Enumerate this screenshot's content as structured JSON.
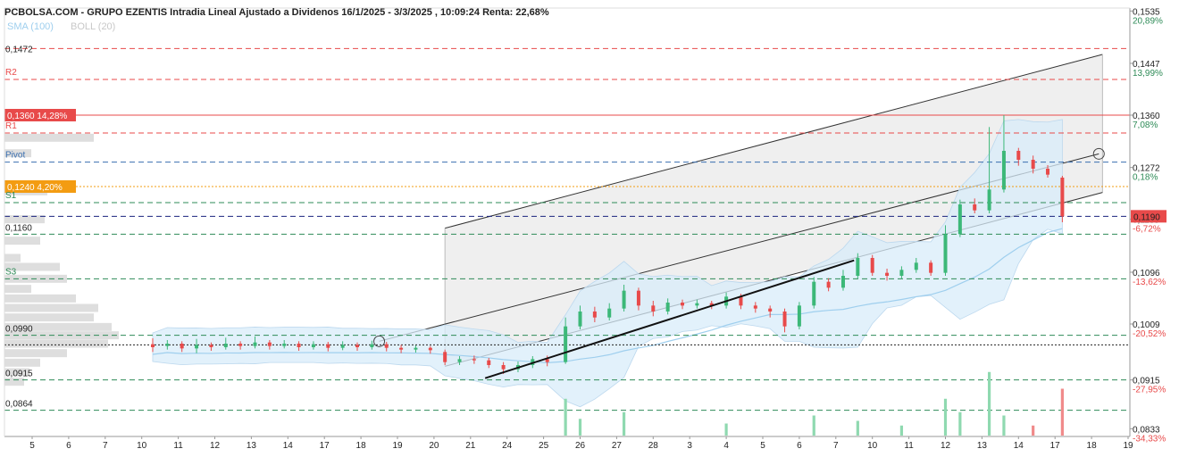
{
  "title": "PCBOLSA.COM - GRUPO EZENTIS Intradia Lineal Ajustado a Dividenos 16/1/2025 - 3/3/2025 , 10:09:24 Renta: 22,68%",
  "indicators": [
    {
      "label": "SMA (100)",
      "color": "#9fcfee"
    },
    {
      "label": "BOLL (20)",
      "color": "#c8c8c8"
    }
  ],
  "colors": {
    "up": "#3cb878",
    "down": "#e84a4a",
    "sma": "#9fcfee",
    "boll_fill": "#d8ecfa",
    "channel_fill": "#ececec",
    "resistance": "#e84a4a",
    "support": "#2e8b57",
    "pivot": "#3a6fb0",
    "highlight_orange": "#f39c12",
    "last_price": "#e84a4a"
  },
  "chart_data": {
    "type": "candlestick",
    "x_ticks": [
      "5",
      "6",
      "7",
      "10",
      "11",
      "12",
      "13",
      "14",
      "17",
      "18",
      "19",
      "20",
      "21",
      "24",
      "25",
      "26",
      "27",
      "28",
      "3",
      "4",
      "5",
      "6",
      "7",
      "10",
      "11",
      "12",
      "13",
      "14",
      "17",
      "18",
      "19"
    ],
    "ylim": [
      0.082,
      0.154
    ],
    "y_ticks": [
      "0,1535",
      "0,1447",
      "0,1360",
      "0,1272",
      "0,1185",
      "0,1096",
      "0,1009",
      "0,0915",
      "0,0833"
    ],
    "y_tick_values": [
      0.1535,
      0.1447,
      0.136,
      0.1272,
      0.1185,
      0.1096,
      0.1009,
      0.0915,
      0.0833
    ],
    "percent_ticks": [
      "20,89%",
      "13,99%",
      "7,08%",
      "0,18%",
      "-6,72%",
      "-13,62%",
      "-20,52%",
      "-27,95%",
      "-34,33%"
    ],
    "percent_values": [
      0.1535,
      0.1447,
      0.136,
      0.1272,
      0.1185,
      0.1096,
      0.1009,
      0.0915,
      0.0833
    ],
    "last_price": {
      "label": "0,1190",
      "value": 0.119
    },
    "levels": [
      {
        "name": "R3",
        "label": "0,1472",
        "value": 0.1472,
        "color": "#e84a4a",
        "style": "dash"
      },
      {
        "name": "R2",
        "label": "R2",
        "value": 0.142,
        "color": "#e84a4a",
        "style": "dash"
      },
      {
        "name": "highlight",
        "label": "0,1360  14,28%",
        "value": 0.136,
        "color": "#e84a4a",
        "style": "solid"
      },
      {
        "name": "R1",
        "label": "R1",
        "value": 0.133,
        "color": "#e84a4a",
        "style": "dash"
      },
      {
        "name": "Pivot",
        "label": "Pivot",
        "value": 0.1281,
        "color": "#3a6fb0",
        "style": "dash"
      },
      {
        "name": "ref",
        "label": "0,1240  4,20%",
        "value": 0.124,
        "color": "#f39c12",
        "style": "dot"
      },
      {
        "name": "S1",
        "label": "S1",
        "value": 0.1213,
        "color": "#2e8b57",
        "style": "dash"
      },
      {
        "name": "mid",
        "label": "",
        "value": 0.119,
        "color": "#1a237e",
        "style": "dash"
      },
      {
        "name": "S2",
        "label": "0,1160",
        "value": 0.116,
        "color": "#2e8b57",
        "style": "dash"
      },
      {
        "name": "S3",
        "label": "S3",
        "value": 0.1085,
        "color": "#2e8b57",
        "style": "dash"
      },
      {
        "name": "low1",
        "label": "0,0990",
        "value": 0.099,
        "color": "#2e8b57",
        "style": "dash"
      },
      {
        "name": "base",
        "label": "",
        "value": 0.0974,
        "color": "#222222",
        "style": "dot"
      },
      {
        "name": "low2",
        "label": "0,0915",
        "value": 0.0915,
        "color": "#2e8b57",
        "style": "dash"
      },
      {
        "name": "low3",
        "label": "0,0864",
        "value": 0.0864,
        "color": "#2e8b57",
        "style": "dash"
      }
    ],
    "channel": {
      "x_start": 12.3,
      "x_end": 30.3,
      "upper": [
        0.117,
        0.1462
      ],
      "middle": [
        0.0982,
        0.1302
      ],
      "lower": [
        0.0938,
        0.123
      ]
    },
    "support_trendline": {
      "x": [
        13.4,
        23.5
      ],
      "y": [
        0.0918,
        0.1116
      ]
    },
    "trend_circles": [
      {
        "x": 10.5,
        "y": 0.098
      },
      {
        "x": 30.2,
        "y": 0.1295
      }
    ],
    "candles": [
      {
        "x": 4.3,
        "o": 0.0975,
        "c": 0.097,
        "h": 0.0985,
        "l": 0.0962
      },
      {
        "x": 4.7,
        "o": 0.0972,
        "c": 0.0976,
        "h": 0.0982,
        "l": 0.0966
      },
      {
        "x": 5.1,
        "o": 0.0976,
        "c": 0.0968,
        "h": 0.098,
        "l": 0.0962
      },
      {
        "x": 5.5,
        "o": 0.0968,
        "c": 0.0974,
        "h": 0.0984,
        "l": 0.096
      },
      {
        "x": 5.9,
        "o": 0.0974,
        "c": 0.097,
        "h": 0.0978,
        "l": 0.0964
      },
      {
        "x": 6.3,
        "o": 0.097,
        "c": 0.0976,
        "h": 0.0986,
        "l": 0.0966
      },
      {
        "x": 6.7,
        "o": 0.0976,
        "c": 0.0972,
        "h": 0.098,
        "l": 0.0966
      },
      {
        "x": 7.1,
        "o": 0.0972,
        "c": 0.0978,
        "h": 0.0988,
        "l": 0.0968
      },
      {
        "x": 7.5,
        "o": 0.0978,
        "c": 0.0972,
        "h": 0.0982,
        "l": 0.0966
      },
      {
        "x": 7.9,
        "o": 0.0972,
        "c": 0.0976,
        "h": 0.0982,
        "l": 0.0968
      },
      {
        "x": 8.3,
        "o": 0.0976,
        "c": 0.097,
        "h": 0.098,
        "l": 0.0964
      },
      {
        "x": 8.7,
        "o": 0.097,
        "c": 0.0975,
        "h": 0.098,
        "l": 0.0966
      },
      {
        "x": 9.1,
        "o": 0.0975,
        "c": 0.0969,
        "h": 0.0979,
        "l": 0.0963
      },
      {
        "x": 9.5,
        "o": 0.0969,
        "c": 0.0974,
        "h": 0.098,
        "l": 0.0965
      },
      {
        "x": 9.9,
        "o": 0.0974,
        "c": 0.097,
        "h": 0.0978,
        "l": 0.0964
      },
      {
        "x": 10.3,
        "o": 0.097,
        "c": 0.0975,
        "h": 0.0981,
        "l": 0.0966
      },
      {
        "x": 10.7,
        "o": 0.0975,
        "c": 0.0969,
        "h": 0.0979,
        "l": 0.0963
      },
      {
        "x": 11.1,
        "o": 0.0969,
        "c": 0.0966,
        "h": 0.0974,
        "l": 0.096
      },
      {
        "x": 11.5,
        "o": 0.0966,
        "c": 0.0969,
        "h": 0.0973,
        "l": 0.0961
      },
      {
        "x": 11.9,
        "o": 0.0969,
        "c": 0.0965,
        "h": 0.0972,
        "l": 0.0959
      },
      {
        "x": 12.3,
        "o": 0.0962,
        "c": 0.0945,
        "h": 0.0966,
        "l": 0.094
      },
      {
        "x": 12.7,
        "o": 0.0945,
        "c": 0.095,
        "h": 0.0955,
        "l": 0.094
      },
      {
        "x": 13.1,
        "o": 0.095,
        "c": 0.0948,
        "h": 0.0956,
        "l": 0.0942
      },
      {
        "x": 13.5,
        "o": 0.0948,
        "c": 0.094,
        "h": 0.0952,
        "l": 0.0935
      },
      {
        "x": 13.9,
        "o": 0.094,
        "c": 0.0933,
        "h": 0.0945,
        "l": 0.0925
      },
      {
        "x": 14.3,
        "o": 0.0933,
        "c": 0.094,
        "h": 0.0946,
        "l": 0.0928
      },
      {
        "x": 14.7,
        "o": 0.094,
        "c": 0.095,
        "h": 0.0955,
        "l": 0.0935
      },
      {
        "x": 15.1,
        "o": 0.095,
        "c": 0.0945,
        "h": 0.0956,
        "l": 0.0938
      },
      {
        "x": 15.6,
        "o": 0.0945,
        "c": 0.1005,
        "h": 0.102,
        "l": 0.0942
      },
      {
        "x": 16.0,
        "o": 0.1005,
        "c": 0.103,
        "h": 0.104,
        "l": 0.1
      },
      {
        "x": 16.4,
        "o": 0.103,
        "c": 0.102,
        "h": 0.1038,
        "l": 0.1012
      },
      {
        "x": 16.8,
        "o": 0.102,
        "c": 0.1035,
        "h": 0.1044,
        "l": 0.1015
      },
      {
        "x": 17.2,
        "o": 0.1035,
        "c": 0.1065,
        "h": 0.1075,
        "l": 0.103
      },
      {
        "x": 17.6,
        "o": 0.1065,
        "c": 0.104,
        "h": 0.107,
        "l": 0.1032
      },
      {
        "x": 18.0,
        "o": 0.104,
        "c": 0.103,
        "h": 0.1048,
        "l": 0.1022
      },
      {
        "x": 18.4,
        "o": 0.103,
        "c": 0.1045,
        "h": 0.1052,
        "l": 0.1025
      },
      {
        "x": 18.8,
        "o": 0.1045,
        "c": 0.104,
        "h": 0.105,
        "l": 0.1034
      },
      {
        "x": 19.2,
        "o": 0.104,
        "c": 0.1044,
        "h": 0.105,
        "l": 0.1035
      },
      {
        "x": 19.6,
        "o": 0.1044,
        "c": 0.104,
        "h": 0.1048,
        "l": 0.1034
      },
      {
        "x": 20.0,
        "o": 0.104,
        "c": 0.1055,
        "h": 0.1062,
        "l": 0.1035
      },
      {
        "x": 20.4,
        "o": 0.1055,
        "c": 0.104,
        "h": 0.106,
        "l": 0.1034
      },
      {
        "x": 20.8,
        "o": 0.104,
        "c": 0.1035,
        "h": 0.1046,
        "l": 0.1028
      },
      {
        "x": 21.2,
        "o": 0.1035,
        "c": 0.103,
        "h": 0.104,
        "l": 0.102
      },
      {
        "x": 21.6,
        "o": 0.103,
        "c": 0.1005,
        "h": 0.1035,
        "l": 0.0995
      },
      {
        "x": 22.0,
        "o": 0.1005,
        "c": 0.104,
        "h": 0.1046,
        "l": 0.1
      },
      {
        "x": 22.4,
        "o": 0.104,
        "c": 0.108,
        "h": 0.1088,
        "l": 0.1035
      },
      {
        "x": 22.8,
        "o": 0.108,
        "c": 0.107,
        "h": 0.1086,
        "l": 0.1064
      },
      {
        "x": 23.2,
        "o": 0.107,
        "c": 0.109,
        "h": 0.11,
        "l": 0.1065
      },
      {
        "x": 23.6,
        "o": 0.109,
        "c": 0.112,
        "h": 0.1128,
        "l": 0.1085
      },
      {
        "x": 24.0,
        "o": 0.112,
        "c": 0.1095,
        "h": 0.1125,
        "l": 0.109
      },
      {
        "x": 24.4,
        "o": 0.1095,
        "c": 0.109,
        "h": 0.1102,
        "l": 0.1082
      },
      {
        "x": 24.8,
        "o": 0.109,
        "c": 0.11,
        "h": 0.1106,
        "l": 0.1085
      },
      {
        "x": 25.2,
        "o": 0.11,
        "c": 0.1112,
        "h": 0.112,
        "l": 0.1095
      },
      {
        "x": 25.6,
        "o": 0.1112,
        "c": 0.1095,
        "h": 0.1116,
        "l": 0.109
      },
      {
        "x": 26.0,
        "o": 0.1095,
        "c": 0.116,
        "h": 0.1175,
        "l": 0.109
      },
      {
        "x": 26.4,
        "o": 0.116,
        "c": 0.121,
        "h": 0.1218,
        "l": 0.1155
      },
      {
        "x": 26.8,
        "o": 0.121,
        "c": 0.12,
        "h": 0.122,
        "l": 0.1195
      },
      {
        "x": 27.2,
        "o": 0.12,
        "c": 0.1235,
        "h": 0.134,
        "l": 0.1195
      },
      {
        "x": 27.6,
        "o": 0.1235,
        "c": 0.13,
        "h": 0.136,
        "l": 0.123
      },
      {
        "x": 28.0,
        "o": 0.13,
        "c": 0.1285,
        "h": 0.1305,
        "l": 0.1275
      },
      {
        "x": 28.4,
        "o": 0.1285,
        "c": 0.127,
        "h": 0.1292,
        "l": 0.1262
      },
      {
        "x": 28.8,
        "o": 0.127,
        "c": 0.126,
        "h": 0.1276,
        "l": 0.1255
      },
      {
        "x": 29.2,
        "o": 0.1255,
        "c": 0.119,
        "h": 0.1258,
        "l": 0.118
      }
    ],
    "volumes": [
      {
        "x": 15.6,
        "v": 0.55,
        "up": true
      },
      {
        "x": 16.0,
        "v": 0.25,
        "up": true
      },
      {
        "x": 17.2,
        "v": 0.35,
        "up": true
      },
      {
        "x": 20.0,
        "v": 0.18,
        "up": true
      },
      {
        "x": 22.4,
        "v": 0.3,
        "up": true
      },
      {
        "x": 23.6,
        "v": 0.22,
        "up": true
      },
      {
        "x": 24.8,
        "v": 0.15,
        "up": true
      },
      {
        "x": 26.0,
        "v": 0.55,
        "up": true
      },
      {
        "x": 26.4,
        "v": 0.35,
        "up": true
      },
      {
        "x": 27.2,
        "v": 0.95,
        "up": true
      },
      {
        "x": 27.6,
        "v": 0.3,
        "up": true
      },
      {
        "x": 28.4,
        "v": 0.15,
        "up": false
      },
      {
        "x": 29.2,
        "v": 0.7,
        "up": false
      }
    ]
  }
}
